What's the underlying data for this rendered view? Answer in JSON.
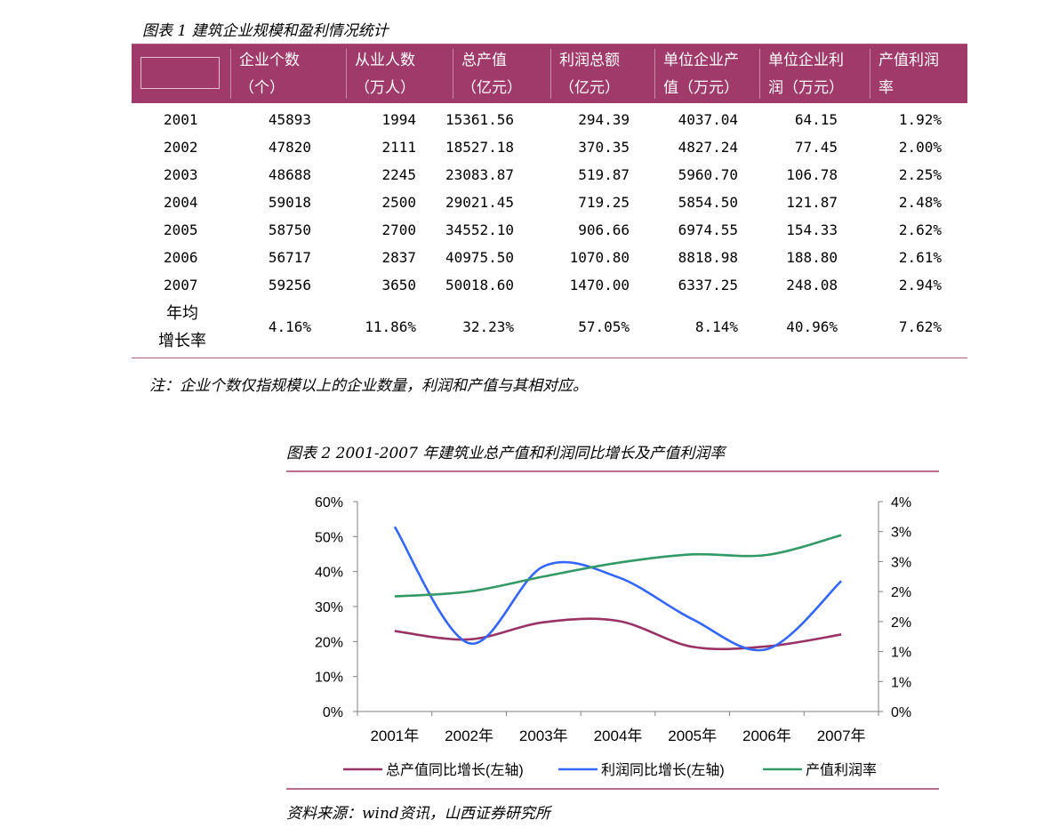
{
  "table1": {
    "caption": "图表 1  建筑企业规模和盈利情况统计",
    "headers": [
      {
        "line1": "企业个数",
        "line2": "（个）"
      },
      {
        "line1": "从业人数",
        "line2": "（万人）"
      },
      {
        "line1": "总产值",
        "line2": "（亿元）"
      },
      {
        "line1": "利润总额",
        "line2": "（亿元）"
      },
      {
        "line1": "单位企业产",
        "line2": "值（万元）"
      },
      {
        "line1": "单位企业利",
        "line2": "润（万元）"
      },
      {
        "line1": "产值利润",
        "line2": "率"
      }
    ],
    "rows": [
      {
        "year": "2001",
        "cells": [
          "45893",
          "1994",
          "15361.56",
          "294.39",
          "4037.04",
          "64.15",
          "1.92%"
        ]
      },
      {
        "year": "2002",
        "cells": [
          "47820",
          "2111",
          "18527.18",
          "370.35",
          "4827.24",
          "77.45",
          "2.00%"
        ]
      },
      {
        "year": "2003",
        "cells": [
          "48688",
          "2245",
          "23083.87",
          "519.87",
          "5960.70",
          "106.78",
          "2.25%"
        ]
      },
      {
        "year": "2004",
        "cells": [
          "59018",
          "2500",
          "29021.45",
          "719.25",
          "5854.50",
          "121.87",
          "2.48%"
        ]
      },
      {
        "year": "2005",
        "cells": [
          "58750",
          "2700",
          "34552.10",
          "906.66",
          "6974.55",
          "154.33",
          "2.62%"
        ]
      },
      {
        "year": "2006",
        "cells": [
          "56717",
          "2837",
          "40975.50",
          "1070.80",
          "8818.98",
          "188.80",
          "2.61%"
        ]
      },
      {
        "year": "2007",
        "cells": [
          "59256",
          "3650",
          "50018.60",
          "1470.00",
          "6337.25",
          "248.08",
          "2.94%"
        ]
      }
    ],
    "footer": {
      "label_line1": "年均",
      "label_line2": "增长率",
      "cells": [
        "4.16%",
        "11.86%",
        "32.23%",
        "57.05%",
        "8.14%",
        "40.96%",
        "7.62%"
      ]
    },
    "note": "注：企业个数仅指规模以上的企业数量，利润和产值与其相对应。"
  },
  "figure2": {
    "caption": "图表 2 2001-2007 年建筑业总产值和利润同比增长及产值利润率",
    "source": "资料来源：wind资讯，山西证券研究所"
  },
  "chart_data": {
    "type": "line",
    "title": "",
    "xlabel": "",
    "ylabel": "",
    "categories": [
      "2001年",
      "2002年",
      "2003年",
      "2004年",
      "2005年",
      "2006年",
      "2007年"
    ],
    "y_left_ticks": [
      "0%",
      "10%",
      "20%",
      "30%",
      "40%",
      "50%",
      "60%"
    ],
    "y_left_range": [
      0,
      60
    ],
    "y_right_ticks": [
      "0%",
      "1%",
      "1%",
      "2%",
      "2%",
      "3%",
      "3%",
      "4%"
    ],
    "y_right_range": [
      0,
      3.5
    ],
    "grid": false,
    "legend_position": "bottom",
    "series": [
      {
        "name": "总产值同比增长(左轴)",
        "axis": "left",
        "color": "#993366",
        "values": [
          23.0,
          20.6,
          25.5,
          25.9,
          18.5,
          18.6,
          22.0
        ]
      },
      {
        "name": "利润同比增长(左轴)",
        "axis": "right_left",
        "color": "#3366ff",
        "values": [
          52.8,
          19.5,
          41.5,
          38.4,
          26.4,
          17.8,
          37.3
        ]
      },
      {
        "name": "产值利润率",
        "axis": "right",
        "color": "#339966",
        "values": [
          1.92,
          2.0,
          2.25,
          2.48,
          2.62,
          2.61,
          2.94
        ]
      }
    ],
    "colors": {
      "axis": "#808080"
    }
  }
}
